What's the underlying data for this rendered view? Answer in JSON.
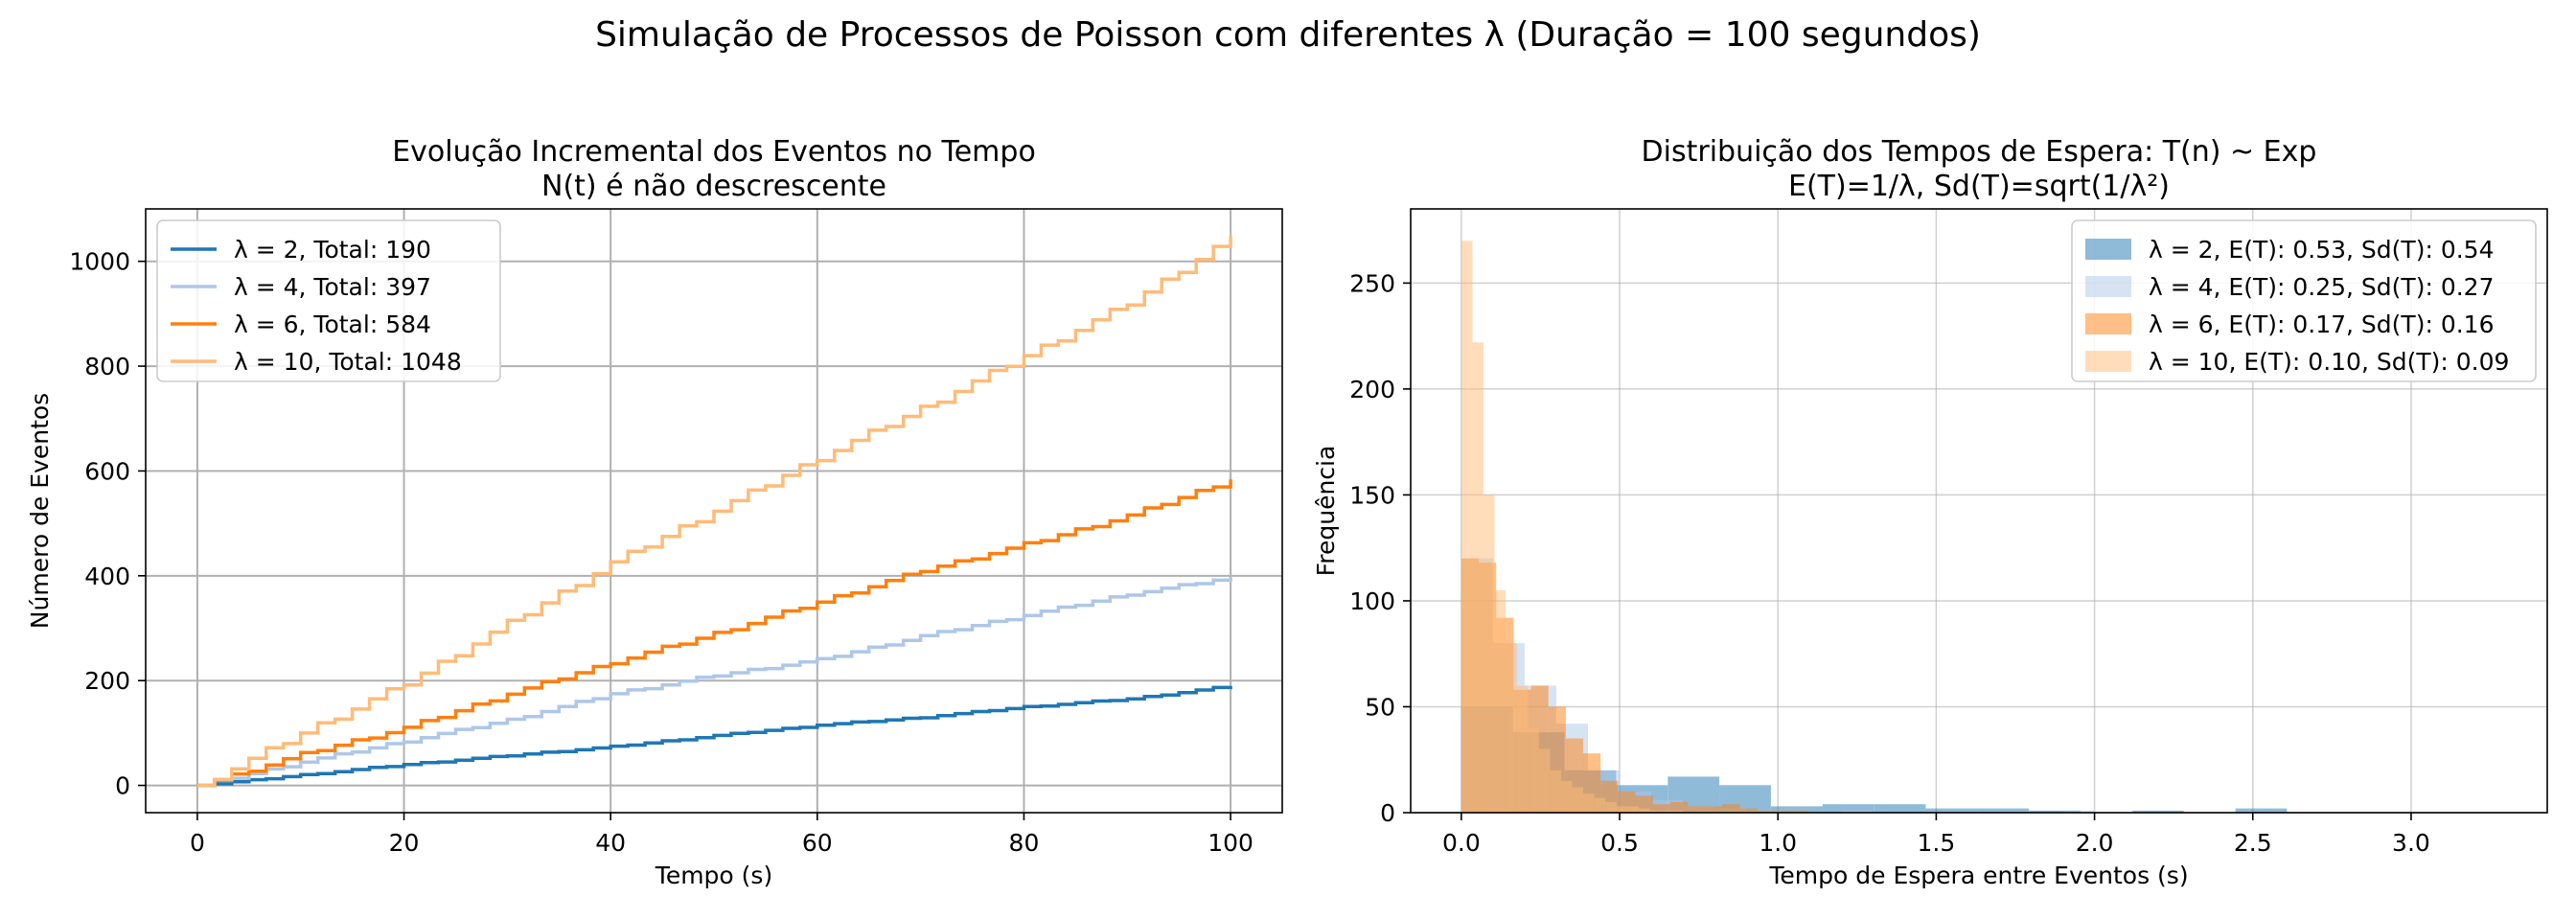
{
  "figure": {
    "suptitle": "Simulação de Processos de Poisson  com diferentes λ (Duração = 100 segundos)"
  },
  "colors": {
    "lambda2": "#1f77b4",
    "lambda4": "#aec7e8",
    "lambda6": "#ff7f0e",
    "lambda10": "#ffbb78",
    "grid": "#b0b0b0"
  },
  "chart_data": [
    {
      "type": "line",
      "title": "Evolução Incremental dos Eventos no Tempo",
      "subtitle": "N(t) é não descrescente",
      "xlabel": "Tempo (s)",
      "ylabel": "Número de Eventos",
      "xlim": [
        -5,
        105
      ],
      "ylim": [
        -52,
        1100
      ],
      "xticks": [
        0,
        20,
        40,
        60,
        80,
        100
      ],
      "yticks": [
        0,
        200,
        400,
        600,
        800,
        1000
      ],
      "grid": true,
      "legend_position": "upper left",
      "series": [
        {
          "name": "λ = 2, Total: 190",
          "x": [
            0,
            10,
            20,
            30,
            40,
            50,
            60,
            70,
            80,
            90,
            100
          ],
          "values": [
            0,
            20,
            40,
            57,
            74,
            95,
            115,
            130,
            150,
            165,
            190
          ]
        },
        {
          "name": "λ = 4, Total: 397",
          "x": [
            0,
            10,
            20,
            30,
            40,
            50,
            60,
            70,
            80,
            90,
            100
          ],
          "values": [
            0,
            45,
            85,
            125,
            175,
            210,
            240,
            285,
            325,
            365,
            397
          ]
        },
        {
          "name": "λ = 6, Total: 584",
          "x": [
            0,
            10,
            20,
            30,
            40,
            50,
            60,
            70,
            80,
            90,
            100
          ],
          "values": [
            0,
            60,
            110,
            175,
            235,
            290,
            350,
            410,
            460,
            515,
            584
          ]
        },
        {
          "name": "λ = 10, Total: 1048",
          "x": [
            0,
            10,
            20,
            30,
            40,
            50,
            60,
            70,
            80,
            90,
            100
          ],
          "values": [
            0,
            100,
            195,
            310,
            425,
            525,
            625,
            720,
            820,
            920,
            1048
          ]
        }
      ]
    },
    {
      "type": "histogram",
      "title": "Distribuição dos Tempos de Espera: T(n) ~ Exp",
      "subtitle": "E(T)=1/λ, Sd(T)=sqrt(1/λ²)",
      "xlabel": "Tempo de Espera entre Eventos (s)",
      "ylabel": "Frequência",
      "xlim": [
        -0.16,
        3.43
      ],
      "ylim": [
        0,
        285
      ],
      "xticks": [
        0.0,
        0.5,
        1.0,
        1.5,
        2.0,
        2.5,
        3.0
      ],
      "xtick_labels": [
        "0.0",
        "0.5",
        "1.0",
        "1.5",
        "2.0",
        "2.5",
        "3.0"
      ],
      "yticks": [
        0,
        50,
        100,
        150,
        200,
        250
      ],
      "grid": true,
      "legend_position": "upper right",
      "series": [
        {
          "name": "λ = 2, E(T): 0.53, Sd(T): 0.54",
          "bin_start": 0.0,
          "bin_width": 0.163,
          "counts": [
            50,
            38,
            20,
            13,
            17,
            13,
            3,
            4,
            4,
            2,
            2,
            1,
            0,
            1,
            0,
            2,
            0,
            0,
            0,
            0
          ]
        },
        {
          "name": "λ = 4, E(T): 0.25, Sd(T): 0.27",
          "bin_start": 0.0,
          "bin_width": 0.1,
          "counts": [
            120,
            80,
            60,
            42,
            20,
            10,
            6,
            3,
            2,
            1,
            1,
            0,
            1,
            0,
            0,
            0,
            0,
            0,
            0,
            1
          ]
        },
        {
          "name": "λ = 6, E(T): 0.17, Sd(T): 0.16",
          "bin_start": 0.0,
          "bin_width": 0.055,
          "counts": [
            120,
            118,
            92,
            58,
            60,
            50,
            35,
            28,
            15,
            10,
            8,
            4,
            5,
            3,
            3,
            4,
            2,
            1,
            1,
            1
          ]
        },
        {
          "name": "λ = 10, E(T): 0.10, Sd(T): 0.09",
          "bin_start": 0.0,
          "bin_width": 0.035,
          "counts": [
            270,
            222,
            150,
            105,
            80,
            60,
            40,
            30,
            20,
            15,
            12,
            9,
            7,
            5,
            3,
            3,
            2,
            1,
            1,
            1
          ]
        }
      ]
    }
  ]
}
